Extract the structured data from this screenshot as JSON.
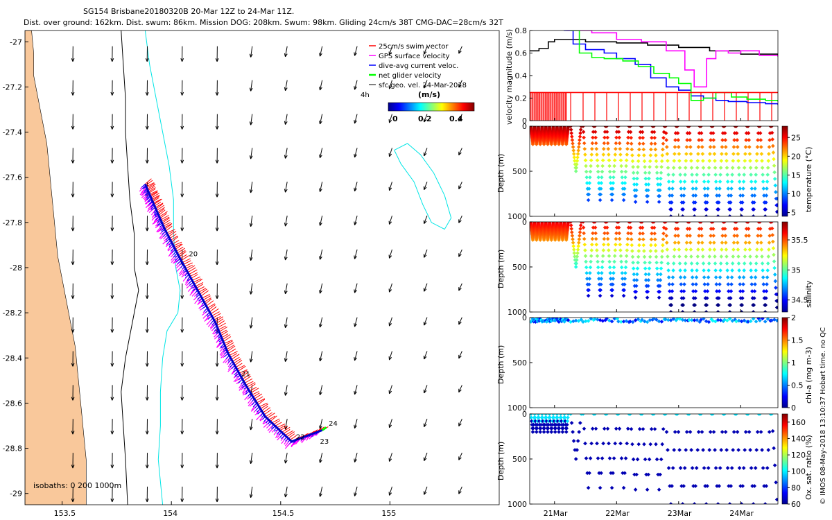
{
  "title": {
    "line1": "SG154 Brisbane20180320B 20-Mar 12Z to 24-Mar 11Z.",
    "line2": "Dist. over ground: 162km. Dist. swum: 86km. Mission DOG: 208km. Swum: 98km. Gliding 24cm/s 38T CMG-DAC=28cm/s 32T"
  },
  "footer": "© IMOS 08-May-2018 13:10:37 Hobart time. no QC",
  "colors": {
    "land": "#f9c89b",
    "swim": "#ff0000",
    "gps": "#ff00ff",
    "dac": "#0000ff",
    "net": "#00ff00",
    "sfc": "#000000",
    "isobath200": "#000000",
    "isobath1000": "#00e5e5"
  },
  "chart_data": [
    {
      "type": "map",
      "xlim": [
        153.33,
        155.5
      ],
      "ylim": [
        -29.05,
        -26.95
      ],
      "xticks": [
        "153.5",
        "154",
        "154.5",
        "155"
      ],
      "xtick_values": [
        153.5,
        154.0,
        154.5,
        155.0
      ],
      "yticks": [
        "-27",
        "-27.2",
        "-27.4",
        "-27.6",
        "-27.8",
        "-28",
        "-28.2",
        "-28.4",
        "-28.6",
        "-28.8",
        "-29"
      ],
      "ytick_values": [
        -27.0,
        -27.2,
        -27.4,
        -27.6,
        -27.8,
        -28.0,
        -28.2,
        -28.4,
        -28.6,
        -28.8,
        -29.0
      ],
      "legend": {
        "placement": "top-right",
        "entries": [
          "25cm/s swim vector",
          "GPS surface velocity",
          "dive-avg current veloc.",
          "net glider velocity",
          "sfc geo. vel. 24-Mar-2018"
        ],
        "colorbar_title": "(m/s)",
        "colorbar_ticks": [
          "0",
          "0.2",
          "0.4"
        ],
        "scale_label": "4h"
      },
      "isobath_label": "isobaths: 0   200  1000m",
      "coast": [
        [
          -26.95,
          153.36
        ],
        [
          -27.05,
          153.37
        ],
        [
          -27.15,
          153.37
        ],
        [
          -27.25,
          153.39
        ],
        [
          -27.35,
          153.41
        ],
        [
          -27.45,
          153.43
        ],
        [
          -27.55,
          153.44
        ],
        [
          -27.65,
          153.45
        ],
        [
          -27.75,
          153.46
        ],
        [
          -27.85,
          153.47
        ],
        [
          -27.95,
          153.48
        ],
        [
          -28.05,
          153.5
        ],
        [
          -28.15,
          153.52
        ],
        [
          -28.25,
          153.54
        ],
        [
          -28.35,
          153.56
        ],
        [
          -28.45,
          153.57
        ],
        [
          -28.55,
          153.58
        ],
        [
          -28.65,
          153.59
        ],
        [
          -28.75,
          153.6
        ],
        [
          -28.85,
          153.61
        ],
        [
          -28.95,
          153.61
        ],
        [
          -29.05,
          153.61
        ]
      ],
      "isobath_200": [
        [
          -26.95,
          153.77
        ],
        [
          -27.1,
          153.78
        ],
        [
          -27.25,
          153.79
        ],
        [
          -27.4,
          153.79
        ],
        [
          -27.55,
          153.8
        ],
        [
          -27.7,
          153.81
        ],
        [
          -27.85,
          153.83
        ],
        [
          -28.0,
          153.83
        ],
        [
          -28.1,
          153.85
        ],
        [
          -28.25,
          153.82
        ],
        [
          -28.4,
          153.79
        ],
        [
          -28.55,
          153.77
        ],
        [
          -28.7,
          153.78
        ],
        [
          -28.85,
          153.79
        ],
        [
          -29.05,
          153.8
        ]
      ],
      "isobath_1000": [
        [
          -26.95,
          153.88
        ],
        [
          -27.1,
          153.9
        ],
        [
          -27.25,
          153.93
        ],
        [
          -27.4,
          153.96
        ],
        [
          -27.55,
          153.99
        ],
        [
          -27.7,
          154.01
        ],
        [
          -27.85,
          154.01
        ],
        [
          -28.0,
          154.02
        ],
        [
          -28.1,
          154.04
        ],
        [
          -28.2,
          154.03
        ],
        [
          -28.28,
          153.98
        ],
        [
          -28.4,
          153.96
        ],
        [
          -28.55,
          153.95
        ],
        [
          -28.7,
          153.95
        ],
        [
          -28.85,
          153.94
        ],
        [
          -29.05,
          153.96
        ]
      ],
      "eddy_contour": [
        [
          -27.48,
          155.02
        ],
        [
          -27.45,
          155.08
        ],
        [
          -27.5,
          155.14
        ],
        [
          -27.58,
          155.2
        ],
        [
          -27.68,
          155.25
        ],
        [
          -27.78,
          155.28
        ],
        [
          -27.83,
          155.25
        ],
        [
          -27.8,
          155.19
        ],
        [
          -27.72,
          155.15
        ],
        [
          -27.62,
          155.11
        ],
        [
          -27.54,
          155.05
        ],
        [
          -27.48,
          155.02
        ]
      ],
      "track": [
        [
          -27.63,
          153.88
        ],
        [
          -27.72,
          153.92
        ],
        [
          -27.83,
          153.97
        ],
        [
          -27.96,
          154.04
        ],
        [
          -28.1,
          154.12
        ],
        [
          -28.24,
          154.2
        ],
        [
          -28.38,
          154.26
        ],
        [
          -28.52,
          154.34
        ],
        [
          -28.66,
          154.43
        ],
        [
          -28.77,
          154.55
        ],
        [
          -28.72,
          154.69
        ]
      ],
      "day_labels": [
        {
          "text": "20",
          "lat": -27.95,
          "lon": 154.08
        },
        {
          "text": "21",
          "lat": -28.48,
          "lon": 154.32
        },
        {
          "text": "22",
          "lat": -28.76,
          "lon": 154.57
        },
        {
          "text": "23",
          "lat": -28.78,
          "lon": 154.68
        },
        {
          "text": "24",
          "lat": -28.7,
          "lon": 154.72
        }
      ],
      "vector_grid": {
        "lons": [
          153.55,
          153.73,
          153.89,
          154.05,
          154.21,
          154.37,
          154.53,
          154.69,
          154.85,
          155.01,
          155.17,
          155.33
        ],
        "lats": [
          -27.02,
          -27.17,
          -27.32,
          -27.47,
          -27.62,
          -27.77,
          -27.92,
          -28.07,
          -28.22,
          -28.37,
          -28.52,
          -28.67,
          -28.82,
          -28.97
        ],
        "speed_ms": 0.25
      }
    },
    {
      "type": "line",
      "ylabel": "velocity magnitude (m/s)",
      "ylim": [
        0,
        0.8
      ],
      "yticks": [
        "0",
        "0.2",
        "0.4",
        "0.6",
        "0.8"
      ],
      "xlim": [
        20.6,
        24.6
      ],
      "series": [
        {
          "color": "#000000",
          "x": [
            20.6,
            20.75,
            20.9,
            21.0,
            21.5,
            22.0,
            22.5,
            23.0,
            23.5,
            24.0,
            24.6
          ],
          "y": [
            0.62,
            0.64,
            0.7,
            0.72,
            0.7,
            0.69,
            0.67,
            0.65,
            0.62,
            0.59,
            0.57
          ]
        },
        {
          "color": "#ff00ff",
          "x": [
            20.8,
            21.2,
            21.6,
            22.0,
            22.4,
            22.8,
            23.1,
            23.25,
            23.45,
            23.6,
            23.8,
            24.0,
            24.3,
            24.6
          ],
          "y": [
            0.82,
            0.8,
            0.78,
            0.72,
            0.7,
            0.62,
            0.45,
            0.3,
            0.55,
            0.62,
            0.6,
            0.62,
            0.58,
            0.57
          ]
        },
        {
          "color": "#0000ff",
          "x": [
            21.15,
            21.3,
            21.5,
            21.8,
            22.0,
            22.3,
            22.55,
            22.8,
            23.0,
            23.2,
            23.4,
            23.6,
            23.8,
            24.1,
            24.4,
            24.6
          ],
          "y": [
            0.8,
            0.68,
            0.63,
            0.6,
            0.55,
            0.5,
            0.38,
            0.3,
            0.27,
            0.22,
            0.2,
            0.18,
            0.17,
            0.16,
            0.15,
            0.14
          ]
        },
        {
          "color": "#00ff00",
          "x": [
            21.25,
            21.4,
            21.6,
            21.8,
            22.1,
            22.35,
            22.6,
            22.85,
            23.0,
            23.2,
            23.4,
            23.6,
            23.85,
            24.1,
            24.4,
            24.6
          ],
          "y": [
            0.8,
            0.6,
            0.56,
            0.55,
            0.53,
            0.48,
            0.42,
            0.38,
            0.33,
            0.18,
            0.2,
            0.25,
            0.21,
            0.19,
            0.18,
            0.17
          ]
        },
        {
          "color": "#ff0000",
          "x": [
            20.6,
            24.6
          ],
          "y": [
            0.25,
            0.25
          ]
        }
      ],
      "dive_spikes_until": 21.2
    },
    {
      "type": "scatter",
      "ylabel": "Depth (m)",
      "yticks": [
        "0",
        "500",
        "1000"
      ],
      "ylim": [
        1000,
        0
      ],
      "colorbar_label": "temperature (°C)",
      "colorbar_ticks": [
        "5",
        "10",
        "15",
        "20",
        "25"
      ],
      "colorbar_range": [
        4,
        28
      ]
    },
    {
      "type": "scatter",
      "ylabel": "Depth (m)",
      "yticks": [
        "0",
        "500",
        "1000"
      ],
      "ylim": [
        1000,
        0
      ],
      "colorbar_label": "salinity",
      "colorbar_ticks": [
        "34.5",
        "35",
        "35.5"
      ],
      "colorbar_range": [
        34.3,
        35.8
      ]
    },
    {
      "type": "scatter",
      "ylabel": "Depth (m)",
      "yticks": [
        "0",
        "500",
        "1000"
      ],
      "ylim": [
        1000,
        0
      ],
      "colorbar_label": "chl-a (mg m-3)",
      "colorbar_ticks": [
        "0",
        "0.5",
        "1",
        "1.5",
        "2"
      ],
      "colorbar_range": [
        0,
        2
      ]
    },
    {
      "type": "scatter",
      "ylabel": "Depth (m)",
      "yticks": [
        "0",
        "500",
        "1000"
      ],
      "ylim": [
        1000,
        0
      ],
      "colorbar_label": "Ox. sat. ratio (%)",
      "colorbar_ticks": [
        "60",
        "80",
        "100",
        "120",
        "140",
        "160"
      ],
      "colorbar_range": [
        60,
        170
      ],
      "xticks": [
        "21Mar",
        "22Mar",
        "23Mar",
        "24Mar"
      ],
      "xtick_values": [
        21,
        22,
        23,
        24
      ]
    }
  ],
  "dive_schedule": {
    "shallow_until": 21.18,
    "dives": [
      20.62,
      20.68,
      20.74,
      20.8,
      20.86,
      20.92,
      20.98,
      21.04,
      21.1,
      21.16,
      21.26,
      21.46,
      21.65,
      21.84,
      22.03,
      22.22,
      22.41,
      22.6,
      22.79,
      22.98,
      23.17,
      23.36,
      23.55,
      23.74,
      23.93,
      24.12,
      24.31,
      24.5
    ],
    "max_depth_m": [
      200,
      200,
      200,
      200,
      200,
      200,
      200,
      200,
      200,
      200,
      500,
      820,
      820,
      820,
      820,
      840,
      840,
      840,
      1000,
      1000,
      1000,
      1000,
      1000,
      1000,
      1000,
      1000,
      1000,
      950
    ]
  }
}
